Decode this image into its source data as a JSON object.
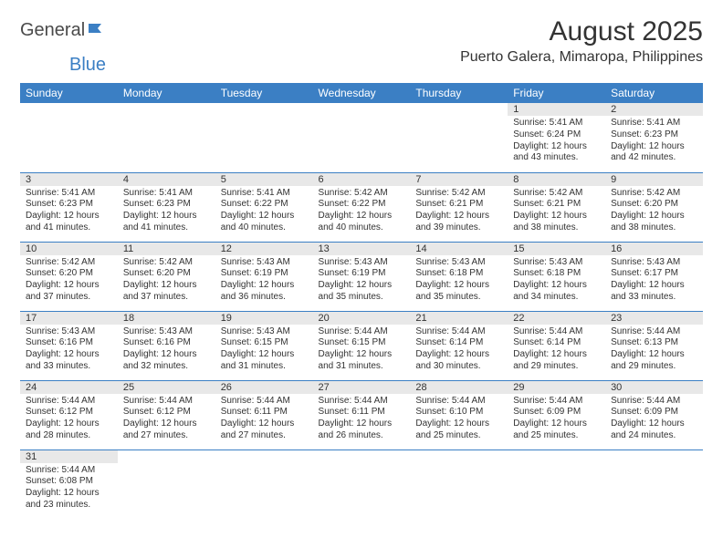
{
  "brand": {
    "part1": "General",
    "part2": "Blue"
  },
  "title": "August 2025",
  "location": "Puerto Galera, Mimaropa, Philippines",
  "colors": {
    "header_bg": "#3b7fc4",
    "header_text": "#ffffff",
    "daynum_bg": "#e8e8e8",
    "cell_text": "#333333",
    "row_divider": "#3b7fc4",
    "page_bg": "#ffffff",
    "logo_gray": "#4a4a4a",
    "logo_blue": "#3b7fc4"
  },
  "day_headers": [
    "Sunday",
    "Monday",
    "Tuesday",
    "Wednesday",
    "Thursday",
    "Friday",
    "Saturday"
  ],
  "weeks": [
    [
      null,
      null,
      null,
      null,
      null,
      {
        "n": "1",
        "sunrise": "Sunrise: 5:41 AM",
        "sunset": "Sunset: 6:24 PM",
        "daylight": "Daylight: 12 hours and 43 minutes."
      },
      {
        "n": "2",
        "sunrise": "Sunrise: 5:41 AM",
        "sunset": "Sunset: 6:23 PM",
        "daylight": "Daylight: 12 hours and 42 minutes."
      }
    ],
    [
      {
        "n": "3",
        "sunrise": "Sunrise: 5:41 AM",
        "sunset": "Sunset: 6:23 PM",
        "daylight": "Daylight: 12 hours and 41 minutes."
      },
      {
        "n": "4",
        "sunrise": "Sunrise: 5:41 AM",
        "sunset": "Sunset: 6:23 PM",
        "daylight": "Daylight: 12 hours and 41 minutes."
      },
      {
        "n": "5",
        "sunrise": "Sunrise: 5:41 AM",
        "sunset": "Sunset: 6:22 PM",
        "daylight": "Daylight: 12 hours and 40 minutes."
      },
      {
        "n": "6",
        "sunrise": "Sunrise: 5:42 AM",
        "sunset": "Sunset: 6:22 PM",
        "daylight": "Daylight: 12 hours and 40 minutes."
      },
      {
        "n": "7",
        "sunrise": "Sunrise: 5:42 AM",
        "sunset": "Sunset: 6:21 PM",
        "daylight": "Daylight: 12 hours and 39 minutes."
      },
      {
        "n": "8",
        "sunrise": "Sunrise: 5:42 AM",
        "sunset": "Sunset: 6:21 PM",
        "daylight": "Daylight: 12 hours and 38 minutes."
      },
      {
        "n": "9",
        "sunrise": "Sunrise: 5:42 AM",
        "sunset": "Sunset: 6:20 PM",
        "daylight": "Daylight: 12 hours and 38 minutes."
      }
    ],
    [
      {
        "n": "10",
        "sunrise": "Sunrise: 5:42 AM",
        "sunset": "Sunset: 6:20 PM",
        "daylight": "Daylight: 12 hours and 37 minutes."
      },
      {
        "n": "11",
        "sunrise": "Sunrise: 5:42 AM",
        "sunset": "Sunset: 6:20 PM",
        "daylight": "Daylight: 12 hours and 37 minutes."
      },
      {
        "n": "12",
        "sunrise": "Sunrise: 5:43 AM",
        "sunset": "Sunset: 6:19 PM",
        "daylight": "Daylight: 12 hours and 36 minutes."
      },
      {
        "n": "13",
        "sunrise": "Sunrise: 5:43 AM",
        "sunset": "Sunset: 6:19 PM",
        "daylight": "Daylight: 12 hours and 35 minutes."
      },
      {
        "n": "14",
        "sunrise": "Sunrise: 5:43 AM",
        "sunset": "Sunset: 6:18 PM",
        "daylight": "Daylight: 12 hours and 35 minutes."
      },
      {
        "n": "15",
        "sunrise": "Sunrise: 5:43 AM",
        "sunset": "Sunset: 6:18 PM",
        "daylight": "Daylight: 12 hours and 34 minutes."
      },
      {
        "n": "16",
        "sunrise": "Sunrise: 5:43 AM",
        "sunset": "Sunset: 6:17 PM",
        "daylight": "Daylight: 12 hours and 33 minutes."
      }
    ],
    [
      {
        "n": "17",
        "sunrise": "Sunrise: 5:43 AM",
        "sunset": "Sunset: 6:16 PM",
        "daylight": "Daylight: 12 hours and 33 minutes."
      },
      {
        "n": "18",
        "sunrise": "Sunrise: 5:43 AM",
        "sunset": "Sunset: 6:16 PM",
        "daylight": "Daylight: 12 hours and 32 minutes."
      },
      {
        "n": "19",
        "sunrise": "Sunrise: 5:43 AM",
        "sunset": "Sunset: 6:15 PM",
        "daylight": "Daylight: 12 hours and 31 minutes."
      },
      {
        "n": "20",
        "sunrise": "Sunrise: 5:44 AM",
        "sunset": "Sunset: 6:15 PM",
        "daylight": "Daylight: 12 hours and 31 minutes."
      },
      {
        "n": "21",
        "sunrise": "Sunrise: 5:44 AM",
        "sunset": "Sunset: 6:14 PM",
        "daylight": "Daylight: 12 hours and 30 minutes."
      },
      {
        "n": "22",
        "sunrise": "Sunrise: 5:44 AM",
        "sunset": "Sunset: 6:14 PM",
        "daylight": "Daylight: 12 hours and 29 minutes."
      },
      {
        "n": "23",
        "sunrise": "Sunrise: 5:44 AM",
        "sunset": "Sunset: 6:13 PM",
        "daylight": "Daylight: 12 hours and 29 minutes."
      }
    ],
    [
      {
        "n": "24",
        "sunrise": "Sunrise: 5:44 AM",
        "sunset": "Sunset: 6:12 PM",
        "daylight": "Daylight: 12 hours and 28 minutes."
      },
      {
        "n": "25",
        "sunrise": "Sunrise: 5:44 AM",
        "sunset": "Sunset: 6:12 PM",
        "daylight": "Daylight: 12 hours and 27 minutes."
      },
      {
        "n": "26",
        "sunrise": "Sunrise: 5:44 AM",
        "sunset": "Sunset: 6:11 PM",
        "daylight": "Daylight: 12 hours and 27 minutes."
      },
      {
        "n": "27",
        "sunrise": "Sunrise: 5:44 AM",
        "sunset": "Sunset: 6:11 PM",
        "daylight": "Daylight: 12 hours and 26 minutes."
      },
      {
        "n": "28",
        "sunrise": "Sunrise: 5:44 AM",
        "sunset": "Sunset: 6:10 PM",
        "daylight": "Daylight: 12 hours and 25 minutes."
      },
      {
        "n": "29",
        "sunrise": "Sunrise: 5:44 AM",
        "sunset": "Sunset: 6:09 PM",
        "daylight": "Daylight: 12 hours and 25 minutes."
      },
      {
        "n": "30",
        "sunrise": "Sunrise: 5:44 AM",
        "sunset": "Sunset: 6:09 PM",
        "daylight": "Daylight: 12 hours and 24 minutes."
      }
    ],
    [
      {
        "n": "31",
        "sunrise": "Sunrise: 5:44 AM",
        "sunset": "Sunset: 6:08 PM",
        "daylight": "Daylight: 12 hours and 23 minutes."
      },
      null,
      null,
      null,
      null,
      null,
      null
    ]
  ]
}
